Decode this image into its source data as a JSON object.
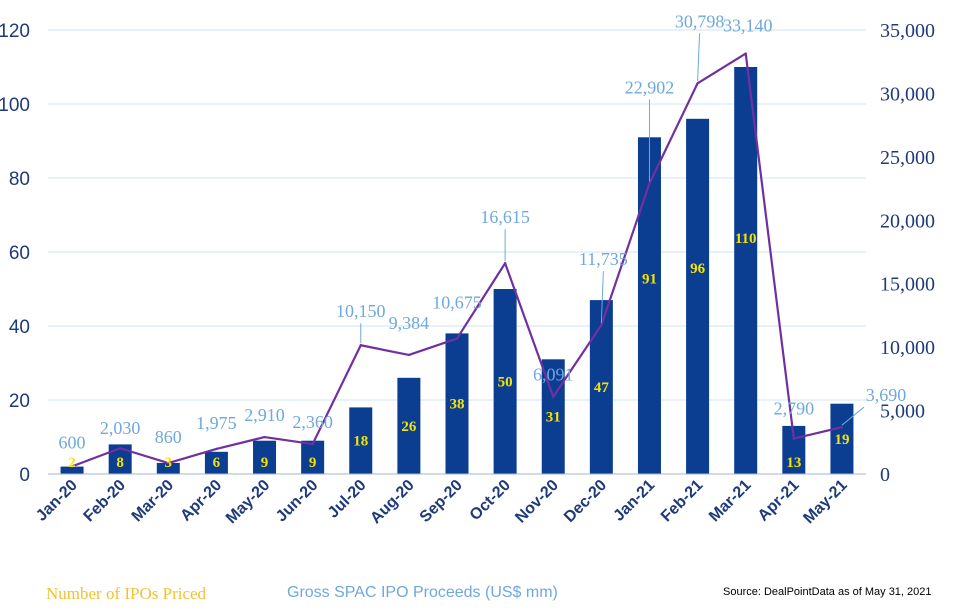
{
  "chart_data": {
    "type": "bar",
    "categories": [
      "Jan-20",
      "Feb-20",
      "Mar-20",
      "Apr-20",
      "May-20",
      "Jun-20",
      "Jul-20",
      "Aug-20",
      "Sep-20",
      "Oct-20",
      "Nov-20",
      "Dec-20",
      "Jan-21",
      "Feb-21",
      "Mar-21",
      "Apr-21",
      "May-21"
    ],
    "series": [
      {
        "name": "Number of IPOs Priced",
        "type": "bar",
        "axis": "left",
        "color": "#0b3d91",
        "label_color": "#f5e400",
        "values": [
          2,
          8,
          3,
          6,
          9,
          9,
          18,
          26,
          38,
          50,
          31,
          47,
          91,
          96,
          110,
          13,
          19
        ]
      },
      {
        "name": "Gross SPAC IPO Proceeds (US$ mm)",
        "type": "line",
        "axis": "right",
        "color": "#7030a0",
        "label_color": "#6fa8dc",
        "values": [
          600,
          2030,
          860,
          1975,
          2910,
          2360,
          10150,
          9384,
          10675,
          16615,
          6091,
          11735,
          22902,
          30798,
          33140,
          2790,
          3690
        ],
        "labels": [
          "600",
          "2,030",
          "860",
          "1,975",
          "2,910",
          "2,360",
          "10,150",
          "9,384",
          "10,675",
          "16,615",
          "6,091",
          "11,735",
          "22,902",
          "30,798",
          "33,140",
          "2,790",
          "3,690"
        ]
      }
    ],
    "y_left": {
      "lim": [
        0,
        120
      ],
      "ticks": [
        "0",
        "20",
        "40",
        "60",
        "80",
        "100",
        "120"
      ]
    },
    "y_right": {
      "lim": [
        0,
        35000
      ],
      "ticks": [
        "0",
        "5,000",
        "10,000",
        "15,000",
        "20,000",
        "25,000",
        "30,000",
        "35,000"
      ]
    },
    "grid": true,
    "legend": "bottom-left"
  },
  "legend": {
    "ipo_label": "Number of IPOs Priced",
    "proceeds_label": "Gross SPAC IPO Proceeds (US$ mm)"
  },
  "source_note": "Source: DealPointData as of May 31, 2021"
}
